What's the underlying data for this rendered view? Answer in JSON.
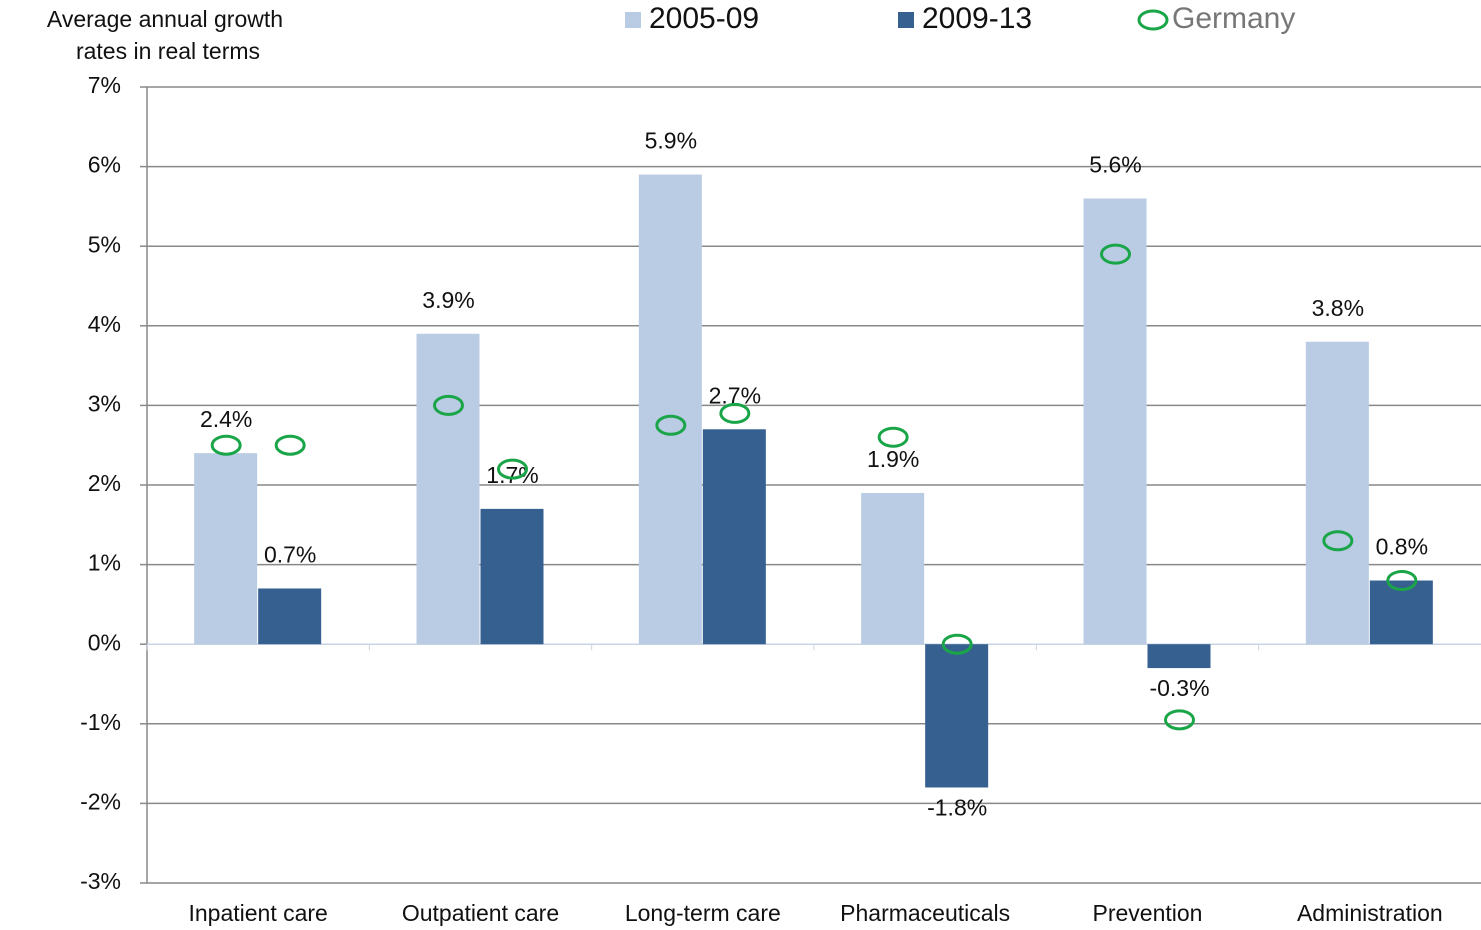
{
  "chart_data": {
    "type": "bar",
    "ylabel": [
      "Average annual growth",
      "rates in real terms"
    ],
    "categories": [
      "Inpatient care",
      "Outpatient care",
      "Long-term care",
      "Pharmaceuticals",
      "Prevention",
      "Administration"
    ],
    "series": [
      {
        "name": "2005-09",
        "color": "#b9cce4",
        "values": [
          2.4,
          3.9,
          5.9,
          1.9,
          5.6,
          3.8
        ],
        "value_labels": [
          "2.4%",
          "3.9%",
          "5.9%",
          "1.9%",
          "5.6%",
          "3.8%"
        ]
      },
      {
        "name": "2009-13",
        "color": "#356090",
        "values": [
          0.7,
          1.7,
          2.7,
          -1.8,
          -0.3,
          0.8
        ],
        "value_labels": [
          "0.7%",
          "1.7%",
          "2.7%",
          "-1.8%",
          "-0.3%",
          "0.8%"
        ]
      }
    ],
    "markers": {
      "name": "Germany",
      "color": "#1aa548",
      "values": [
        [
          2.5,
          3.0,
          2.75,
          2.6,
          4.9,
          1.3
        ],
        [
          2.5,
          2.2,
          2.9,
          0.0,
          -0.95,
          0.8
        ]
      ]
    },
    "ylim": [
      -3,
      7
    ],
    "yticks": [
      {
        "value": -3,
        "label": "-3%"
      },
      {
        "value": -2,
        "label": "-2%"
      },
      {
        "value": -1,
        "label": "-1%"
      },
      {
        "value": 0,
        "label": "0%"
      },
      {
        "value": 1,
        "label": "1%"
      },
      {
        "value": 2,
        "label": "2%"
      },
      {
        "value": 3,
        "label": "3%"
      },
      {
        "value": 4,
        "label": "4%"
      },
      {
        "value": 5,
        "label": "5%"
      },
      {
        "value": 6,
        "label": "6%"
      },
      {
        "value": 7,
        "label": "7%"
      }
    ],
    "grid": true
  }
}
